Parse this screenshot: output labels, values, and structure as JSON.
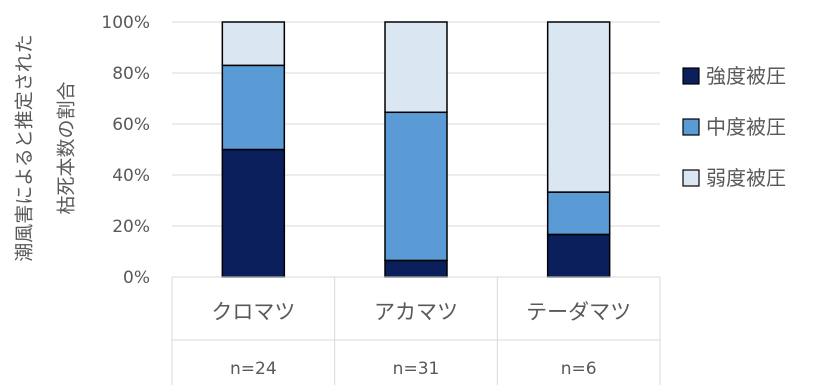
{
  "chart_data": {
    "type": "bar",
    "stacked": true,
    "percent": true,
    "title": "",
    "xlabel": "",
    "ylabel_lines": [
      "潮風害によると推定された",
      "枯死本数の割合"
    ],
    "ylim": [
      0,
      100
    ],
    "yticks": [
      "0%",
      "20%",
      "40%",
      "60%",
      "80%",
      "100%"
    ],
    "grid": true,
    "legend_position": "right",
    "categories": [
      "クロマツ",
      "アカマツ",
      "テーダマツ"
    ],
    "sample_sizes": [
      "n=24",
      "n=31",
      "n=6"
    ],
    "series": [
      {
        "name": "強度被圧",
        "color": "#0b1f5c",
        "values": [
          50,
          6.5,
          16.7
        ]
      },
      {
        "name": "中度被圧",
        "color": "#5b9bd5",
        "values": [
          33,
          58.1,
          16.6
        ]
      },
      {
        "name": "弱度被圧",
        "color": "#dbe6f3",
        "values": [
          17,
          35.4,
          66.7
        ]
      }
    ]
  }
}
